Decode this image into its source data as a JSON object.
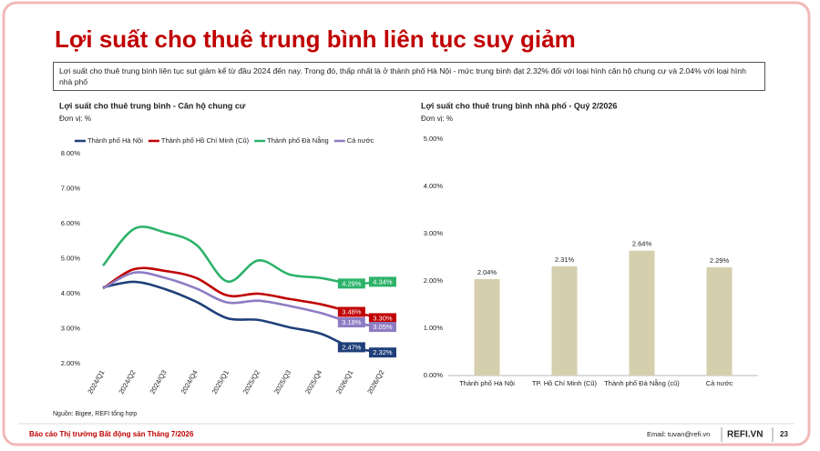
{
  "header": {
    "title": "Lợi suất cho thuê trung bình liên tục suy giảm",
    "description": "Lợi suất cho thuê trung bình liên tục sụt giảm kể từ đầu 2024 đến nay. Trong đó, thấp nhất là ở thành phố Hà Nội - mức trung bình đạt 2.32% đối với loại hình căn hộ chung cư và 2.04% với loại hình nhà phố"
  },
  "chart_data": [
    {
      "type": "line",
      "title": "Lợi suất cho thuê trung bình - Căn hộ chung cư",
      "subtitle": "Đơn vị: %",
      "categories": [
        "2024/Q1",
        "2024/Q2",
        "2024/Q3",
        "2024/Q4",
        "2025/Q1",
        "2025/Q2",
        "2025/Q3",
        "2025/Q4",
        "2026/Q1",
        "2026/Q2"
      ],
      "series": [
        {
          "name": "Thành phố Hà Nội",
          "color": "#1f3f7a",
          "values": [
            4.18,
            4.34,
            4.13,
            3.77,
            3.3,
            3.25,
            3.04,
            2.86,
            2.47,
            2.32
          ],
          "value_labels": [
            null,
            null,
            null,
            null,
            null,
            null,
            null,
            null,
            "2.47%",
            "2.32%"
          ]
        },
        {
          "name": "Thành phố Hồ Chí Minh (Cũ)",
          "color": "#c00000",
          "values": [
            4.15,
            4.7,
            4.65,
            4.45,
            3.95,
            4.0,
            3.85,
            3.7,
            3.48,
            3.3
          ],
          "value_labels": [
            null,
            null,
            null,
            null,
            null,
            null,
            null,
            null,
            "3.48%",
            "3.30%"
          ]
        },
        {
          "name": "Thành phố Đà Nẵng",
          "color": "#2db36a",
          "values": [
            4.8,
            5.85,
            5.75,
            5.4,
            4.35,
            4.95,
            4.55,
            4.45,
            4.29,
            4.34
          ],
          "value_labels": [
            null,
            null,
            null,
            null,
            null,
            null,
            null,
            null,
            "4.29%",
            "4.34%"
          ]
        },
        {
          "name": "Cả nước",
          "color": "#8e7cc3",
          "values": [
            4.15,
            4.6,
            4.45,
            4.15,
            3.75,
            3.8,
            3.65,
            3.45,
            3.18,
            3.05
          ],
          "value_labels": [
            null,
            null,
            null,
            null,
            null,
            null,
            null,
            null,
            "3.18%",
            "3.05%"
          ]
        }
      ],
      "ylim": [
        2,
        8
      ],
      "yticks": [
        {
          "value": 2,
          "label": "2.00%"
        },
        {
          "value": 3,
          "label": "3.00%"
        },
        {
          "value": 4,
          "label": "4.00%"
        },
        {
          "value": 5,
          "label": "5.00%"
        },
        {
          "value": 6,
          "label": "6.00%"
        },
        {
          "value": 7,
          "label": "7.00%"
        },
        {
          "value": 8,
          "label": "8.00%"
        }
      ],
      "grid": false,
      "legend": "top"
    },
    {
      "type": "bar",
      "title": "Lợi suất cho thuê trung bình nhà phố - Quý 2/2026",
      "subtitle": "Đơn vị: %",
      "categories": [
        "Thành phố Hà Nội",
        "TP. Hồ Chí Minh (Cũ)",
        "Thành phố Đà Nẵng (cũ)",
        "Cả nước"
      ],
      "values": [
        2.04,
        2.31,
        2.64,
        2.29
      ],
      "value_labels": [
        "2.04%",
        "2.31%",
        "2.64%",
        "2.29%"
      ],
      "color": "#d6cfae",
      "ylim": [
        0,
        5
      ],
      "yticks": [
        {
          "value": 0,
          "label": "0.00%"
        },
        {
          "value": 1,
          "label": "1.00%"
        },
        {
          "value": 2,
          "label": "2.00%"
        },
        {
          "value": 3,
          "label": "3.00%"
        },
        {
          "value": 4,
          "label": "4.00%"
        },
        {
          "value": 5,
          "label": "5.00%"
        }
      ],
      "grid": false
    }
  ],
  "footer": {
    "source": "Nguồn: Bigee, REFI tổng hợp",
    "report": "Báo cáo Thị trường Bất động sản Tháng 7/2026",
    "email": "Email: tuvan@refi.vn",
    "logo": "REFI.VN",
    "page": "23"
  }
}
